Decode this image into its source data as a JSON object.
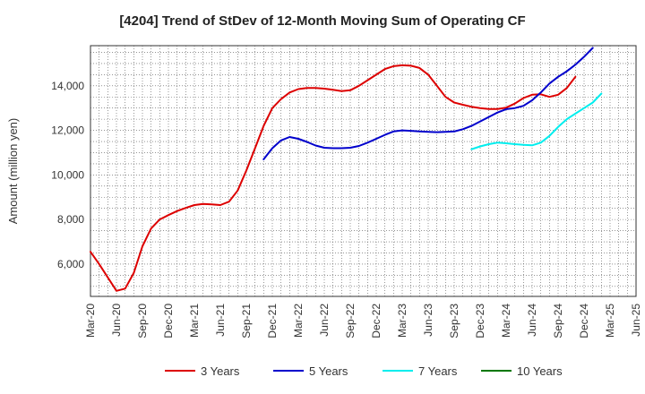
{
  "chart_data": {
    "type": "line",
    "title": "[4204]  Trend of StDev of 12-Month Moving Sum of Operating CF",
    "xlabel": "",
    "ylabel": "Amount (million yen)",
    "x_tick_labels": [
      "Mar-20",
      "Jun-20",
      "Sep-20",
      "Dec-20",
      "Mar-21",
      "Jun-21",
      "Sep-21",
      "Dec-21",
      "Mar-22",
      "Jun-22",
      "Sep-22",
      "Dec-22",
      "Mar-23",
      "Jun-23",
      "Sep-23",
      "Dec-23",
      "Mar-24",
      "Jun-24",
      "Sep-24",
      "Dec-24",
      "Mar-25",
      "Jun-25"
    ],
    "y_ticks": [
      6000,
      8000,
      10000,
      12000,
      14000
    ],
    "y_tick_labels": [
      "6,000",
      "8,000",
      "10,000",
      "12,000",
      "14,000"
    ],
    "ylim": [
      4550,
      15800
    ],
    "x_range_months": [
      0,
      63
    ],
    "grid": true,
    "legend_position": "bottom",
    "series": [
      {
        "name": "3 Years",
        "color": "#dd0000",
        "x": [
          0,
          1,
          2,
          3,
          4,
          5,
          6,
          7,
          8,
          9,
          10,
          11,
          12,
          13,
          14,
          15,
          16,
          17,
          18,
          19,
          20,
          21,
          22,
          23,
          24,
          25,
          26,
          27,
          28,
          29,
          30,
          31,
          32,
          33,
          34,
          35,
          36,
          37,
          38,
          39,
          40,
          41,
          42,
          43,
          44,
          45,
          46,
          47,
          48,
          49,
          50,
          51,
          52,
          53,
          54,
          55,
          56,
          57,
          58,
          59,
          60
        ],
        "values": [
          6550,
          6000,
          5400,
          4800,
          4900,
          5600,
          6800,
          7600,
          8000,
          8200,
          8380,
          8520,
          8650,
          8700,
          8680,
          8650,
          8800,
          9300,
          10200,
          11200,
          12200,
          13000,
          13400,
          13700,
          13850,
          13900,
          13900,
          13870,
          13820,
          13760,
          13800,
          14000,
          14250,
          14500,
          14750,
          14880,
          14920,
          14900,
          14800,
          14500,
          14000,
          13500,
          13250,
          13150,
          13060,
          13000,
          12960,
          12960,
          13020,
          13200,
          13450,
          13600,
          13620,
          13500,
          13600,
          13900,
          14400,
          null,
          null,
          null,
          null
        ]
      },
      {
        "name": "5 Years",
        "color": "#0000cc",
        "x": [
          20,
          21,
          22,
          23,
          24,
          25,
          26,
          27,
          28,
          29,
          30,
          31,
          32,
          33,
          34,
          35,
          36,
          37,
          38,
          39,
          40,
          41,
          42,
          43,
          44,
          45,
          46,
          47,
          48,
          49,
          50,
          51,
          52,
          53,
          54,
          55,
          56,
          57,
          58,
          59,
          60
        ],
        "values": [
          10700,
          11200,
          11550,
          11700,
          11620,
          11480,
          11320,
          11220,
          11200,
          11200,
          11220,
          11300,
          11450,
          11620,
          11800,
          11950,
          12000,
          11980,
          11950,
          11930,
          11920,
          11930,
          11950,
          12050,
          12200,
          12400,
          12600,
          12800,
          12950,
          13000,
          13100,
          13350,
          13700,
          14100,
          14400,
          14650,
          14950,
          15300,
          15700,
          null,
          null
        ]
      },
      {
        "name": "7 Years",
        "color": "#00eeee",
        "x": [
          44,
          45,
          46,
          47,
          48,
          49,
          50,
          51,
          52,
          53,
          54,
          55,
          56,
          57,
          58,
          59,
          60
        ],
        "values": [
          11150,
          11280,
          11380,
          11450,
          11420,
          11380,
          11350,
          11330,
          11450,
          11750,
          12150,
          12500,
          12750,
          13000,
          13250,
          13650,
          null
        ]
      },
      {
        "name": "10 Years",
        "color": "#007700",
        "x": [],
        "values": []
      }
    ]
  }
}
